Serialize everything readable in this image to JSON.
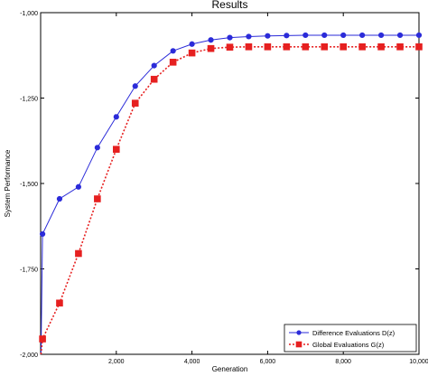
{
  "chart_data": {
    "type": "line",
    "title": "Results",
    "xlabel": "Generation",
    "ylabel": "System Performance",
    "xlim": [
      0,
      10000
    ],
    "ylim": [
      -2000,
      -1000
    ],
    "xticks": [
      2000,
      4000,
      6000,
      8000,
      10000
    ],
    "xtick_labels": [
      "2,000",
      "4,000",
      "6,000",
      "8,000",
      "10,000"
    ],
    "yticks": [
      -1000,
      -1250,
      -1500,
      -1750,
      -2000
    ],
    "ytick_labels": [
      "-1,000",
      "-1,250",
      "-1,500",
      "-1,750",
      "-2,000"
    ],
    "grid": false,
    "legend_position": "bottom-right",
    "series": [
      {
        "name": "Difference Evaluations D(z)",
        "color": "#2b2bd9",
        "line_style": "solid",
        "marker": "circle",
        "x": [
          10,
          50,
          500,
          1000,
          1500,
          2000,
          2500,
          3000,
          3500,
          4000,
          4500,
          5000,
          5500,
          6000,
          6500,
          7000,
          7500,
          8000,
          8500,
          9000,
          9500,
          10000
        ],
        "y": [
          -2000,
          -1648,
          -1545,
          -1510,
          -1395,
          -1305,
          -1215,
          -1155,
          -1112,
          -1092,
          -1080,
          -1073,
          -1070,
          -1068,
          -1067,
          -1066,
          -1066,
          -1066,
          -1066,
          -1066,
          -1066,
          -1066
        ]
      },
      {
        "name": "Global Evaluations G(z)",
        "color": "#e62020",
        "line_style": "dotted",
        "marker": "square",
        "x": [
          10,
          50,
          500,
          1000,
          1500,
          2000,
          2500,
          3000,
          3500,
          4000,
          4500,
          5000,
          5500,
          6000,
          6500,
          7000,
          7500,
          8000,
          8500,
          9000,
          9500,
          10000
        ],
        "y": [
          -2000,
          -1955,
          -1850,
          -1705,
          -1545,
          -1400,
          -1265,
          -1195,
          -1145,
          -1118,
          -1105,
          -1101,
          -1100,
          -1100,
          -1100,
          -1100,
          -1100,
          -1100,
          -1100,
          -1100,
          -1100,
          -1100
        ]
      }
    ]
  }
}
